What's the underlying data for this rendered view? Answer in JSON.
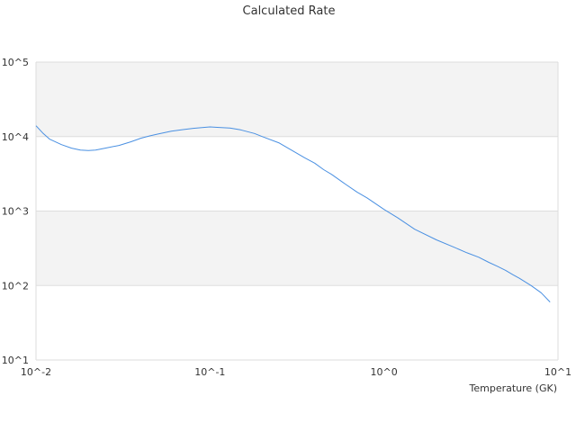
{
  "chart_data": {
    "type": "line",
    "title": "Calculated Rate",
    "xlabel": "Temperature (GK)",
    "ylabel": "",
    "x_scale": "log",
    "y_scale": "log",
    "xlim": [
      0.01,
      10
    ],
    "ylim": [
      10,
      100000
    ],
    "x_ticks": [
      {
        "value": 0.01,
        "label": "10^-2"
      },
      {
        "value": 0.1,
        "label": "10^-1"
      },
      {
        "value": 1,
        "label": "10^0"
      },
      {
        "value": 10,
        "label": "10^1"
      }
    ],
    "y_ticks": [
      {
        "value": 10,
        "label": "10^1"
      },
      {
        "value": 100,
        "label": "10^2"
      },
      {
        "value": 1000,
        "label": "10^3"
      },
      {
        "value": 10000,
        "label": "10^4"
      },
      {
        "value": 100000,
        "label": "10^5"
      }
    ],
    "grid": true,
    "legend": "none",
    "band_color": "#f3f3f3",
    "grid_color": "#dddddd",
    "series": [
      {
        "color": "#4a90e2",
        "x": [
          0.01,
          0.011,
          0.012,
          0.014,
          0.016,
          0.018,
          0.02,
          0.022,
          0.025,
          0.03,
          0.035,
          0.04,
          0.045,
          0.05,
          0.06,
          0.07,
          0.08,
          0.09,
          0.1,
          0.11,
          0.13,
          0.15,
          0.18,
          0.2,
          0.25,
          0.3,
          0.35,
          0.4,
          0.45,
          0.5,
          0.6,
          0.7,
          0.8,
          1.0,
          1.2,
          1.5,
          2.0,
          2.5,
          3.0,
          3.5,
          4.0,
          4.5,
          5.0,
          5.5,
          6.0,
          7.0,
          8.0,
          9.0
        ],
        "y": [
          14000,
          11000,
          9200,
          7800,
          7000,
          6600,
          6500,
          6600,
          7000,
          7600,
          8500,
          9500,
          10200,
          10800,
          11800,
          12400,
          12900,
          13200,
          13500,
          13300,
          13000,
          12300,
          11000,
          10000,
          8200,
          6400,
          5200,
          4400,
          3600,
          3100,
          2300,
          1800,
          1500,
          1050,
          810,
          570,
          410,
          330,
          275,
          240,
          205,
          180,
          160,
          140,
          125,
          100,
          80,
          60
        ]
      }
    ]
  }
}
